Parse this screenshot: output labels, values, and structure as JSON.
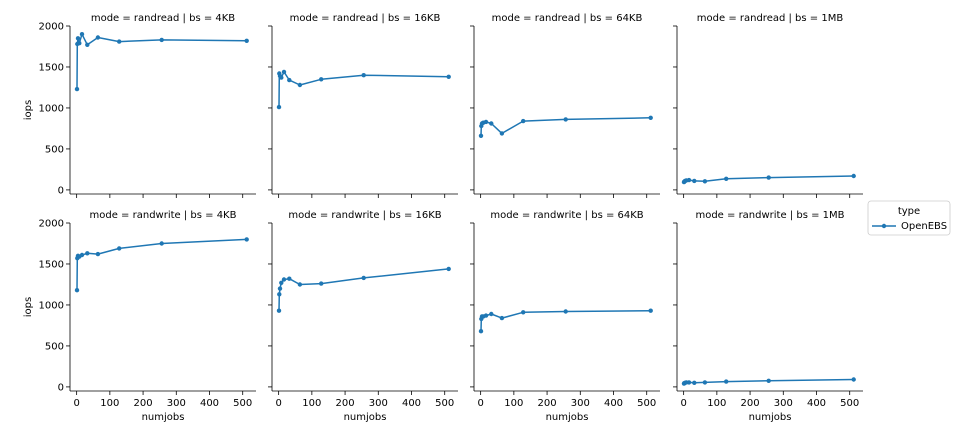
{
  "chart_data": {
    "type": "line",
    "ylabel": "iops",
    "xlabel": "numjobs",
    "xlim": [
      -20,
      540
    ],
    "ylim": [
      -50,
      2000
    ],
    "xticks": [
      0,
      100,
      200,
      300,
      400,
      500
    ],
    "yticks": [
      0,
      500,
      1000,
      1500,
      2000
    ],
    "grid": false,
    "series_color": "#1f77b4",
    "legend": {
      "title": "type",
      "entries": [
        "OpenEBS"
      ],
      "placement": "right"
    },
    "x": [
      1,
      2,
      4,
      8,
      16,
      32,
      64,
      128,
      256,
      512
    ],
    "panels": [
      {
        "title": "mode = randread | bs = 4KB",
        "values": [
          1230,
          1780,
          1850,
          1790,
          1900,
          1770,
          1860,
          1810,
          1830,
          1820
        ]
      },
      {
        "title": "mode = randread | bs = 16KB",
        "values": [
          1010,
          1420,
          1390,
          1370,
          1440,
          1340,
          1280,
          1350,
          1400,
          1380
        ]
      },
      {
        "title": "mode = randread | bs = 64KB",
        "values": [
          660,
          780,
          810,
          820,
          830,
          810,
          690,
          840,
          860,
          880
        ]
      },
      {
        "title": "mode = randread | bs = 1MB",
        "values": [
          95,
          100,
          110,
          115,
          120,
          110,
          105,
          135,
          150,
          170
        ]
      },
      {
        "title": "mode = randwrite | bs = 4KB",
        "values": [
          1180,
          1570,
          1600,
          1590,
          1610,
          1630,
          1620,
          1690,
          1750,
          1800
        ]
      },
      {
        "title": "mode = randwrite | bs = 16KB",
        "values": [
          930,
          1130,
          1200,
          1270,
          1310,
          1320,
          1250,
          1260,
          1330,
          1440
        ]
      },
      {
        "title": "mode = randwrite | bs = 64KB",
        "values": [
          680,
          830,
          860,
          860,
          870,
          890,
          840,
          910,
          920,
          930
        ]
      },
      {
        "title": "mode = randwrite | bs = 1MB",
        "values": [
          40,
          45,
          50,
          55,
          55,
          50,
          55,
          65,
          75,
          90
        ]
      }
    ]
  }
}
